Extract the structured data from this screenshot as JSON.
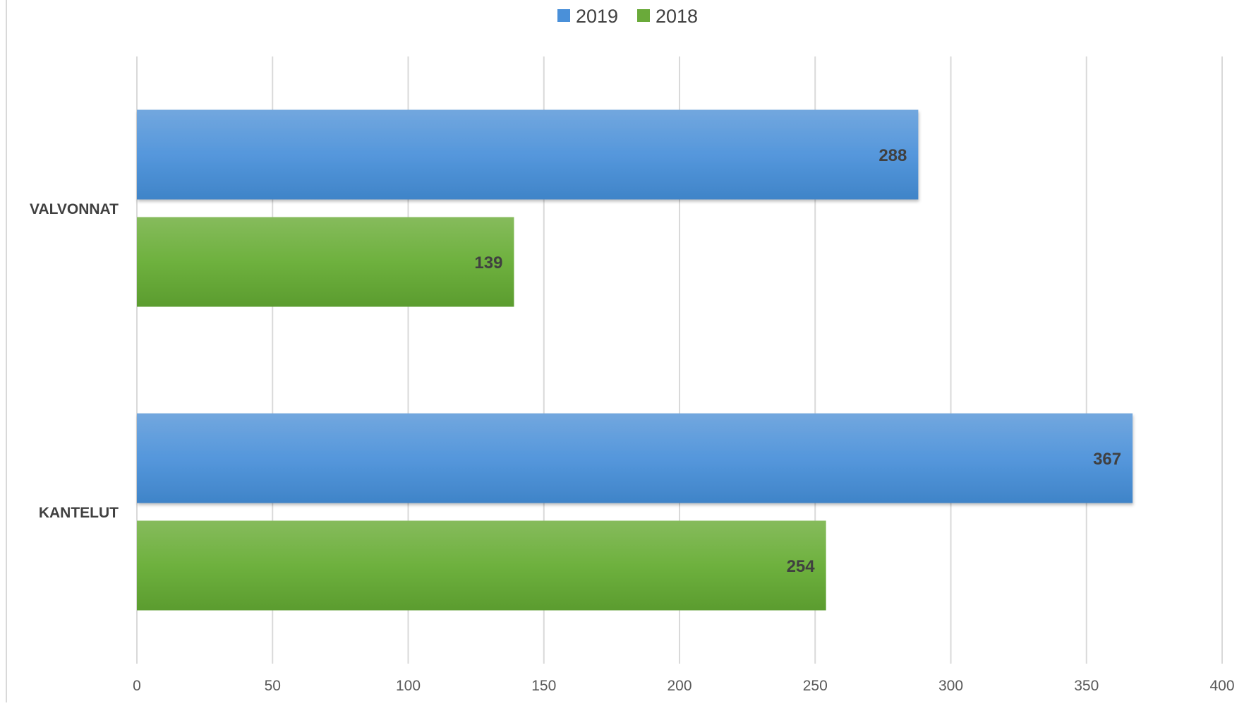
{
  "chart_data": {
    "type": "bar",
    "orientation": "horizontal",
    "categories": [
      "VALVONNAT",
      "KANTELUT"
    ],
    "series": [
      {
        "name": "2019",
        "values": [
          288,
          367
        ],
        "color": "#4a90d9"
      },
      {
        "name": "2018",
        "values": [
          139,
          254
        ],
        "color": "#6aaa3a"
      }
    ],
    "xlim": [
      0,
      400
    ],
    "xticks": [
      "0",
      "50",
      "100",
      "150",
      "200",
      "250",
      "300",
      "350",
      "400"
    ],
    "xlabel": "",
    "ylabel": "",
    "title": "",
    "legend_position": "top",
    "grid": true,
    "data_labels": true
  }
}
